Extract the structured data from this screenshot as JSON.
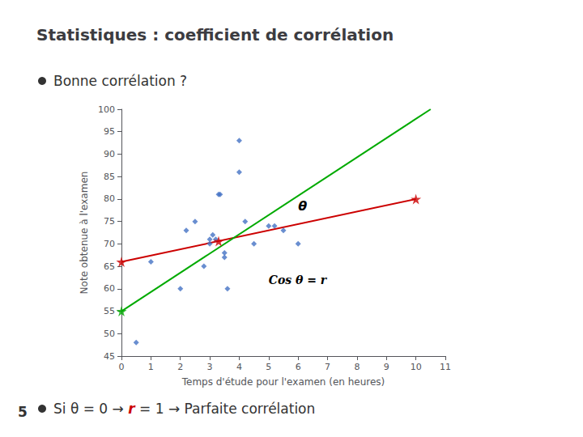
{
  "chart_data": {
    "type": "scatter",
    "title": "Statistiques : coefficient de corrélation",
    "x_label": "Temps d'étude pour l'examen (en heures)",
    "y_label": "Note obtenue à l'examen",
    "annotations": [
      "5",
      "Bonne corrélation ?",
      "Si θ = 0 → ",
      "r",
      " = 1 → Parfaite corrélation",
      "θ",
      "Cos θ = r"
    ],
    "series": [
      {
        "type": "scatter",
        "marker": "diamond",
        "color": "#4472c4",
        "x": [
          0.5,
          1.0,
          2.0,
          2.2,
          2.5,
          2.8,
          3.0,
          3.0,
          3.1,
          3.2,
          3.3,
          3.35,
          3.5,
          3.5,
          3.6,
          4.0,
          4.0,
          4.2,
          4.5,
          5.0,
          5.2,
          5.5,
          6.0
        ],
        "values": [
          48,
          66,
          60,
          73,
          75,
          65,
          71,
          70,
          72,
          71,
          81,
          81,
          68,
          67,
          60,
          93,
          86,
          75,
          70,
          74,
          74,
          73,
          70
        ]
      },
      {
        "type": "line",
        "color": "#cc0000",
        "x": [
          0,
          10
        ],
        "values": [
          66,
          80
        ]
      },
      {
        "type": "line",
        "color": "#00aa00",
        "x": [
          0,
          10.5
        ],
        "values": [
          55,
          100
        ]
      },
      {
        "type": "scatter",
        "marker": "star",
        "color": "#cc0000",
        "x": [
          0,
          3.3,
          10
        ],
        "values": [
          66,
          70.6,
          80
        ]
      },
      {
        "type": "scatter",
        "marker": "star",
        "color": "#00aa00",
        "x": [
          0
        ],
        "values": [
          55
        ]
      }
    ],
    "xlim": [
      0,
      11
    ],
    "ylim": [
      45,
      100
    ],
    "xticks": [
      0,
      1,
      2,
      3,
      4,
      5,
      6,
      7,
      8,
      9,
      10,
      11
    ],
    "yticks": [
      45,
      50,
      55,
      60,
      65,
      70,
      75,
      80,
      85,
      90,
      95,
      100
    ],
    "grid": false
  }
}
